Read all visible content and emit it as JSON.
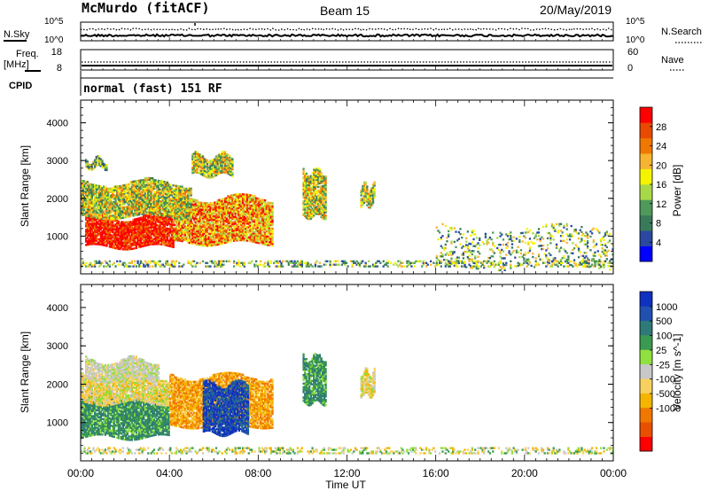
{
  "header": {
    "station": "McMurdo (fitACF)",
    "beam": "Beam 15",
    "date": "20/May/2019"
  },
  "strip_panels": {
    "noise": {
      "left_label": "N.Sky",
      "right_label": "N.Search",
      "left_ticks": [
        "10^5",
        "10^0"
      ],
      "right_ticks": [
        "10^5",
        "10^0"
      ]
    },
    "freq": {
      "left_label_line1": "Freq.",
      "left_label_line2": "[MHz]",
      "right_label": "Nave",
      "left_ticks": [
        "18",
        "8"
      ],
      "right_ticks": [
        "60",
        "0"
      ]
    },
    "cpid": {
      "label": "CPID",
      "text": "normal (fast) 151 RF"
    }
  },
  "colors": {
    "power_scale": [
      "#0000ff",
      "#2a48a0",
      "#3a7a5a",
      "#4f9a5a",
      "#a8d848",
      "#f4f400",
      "#f6b430",
      "#f07800",
      "#e84a00",
      "#ff0000"
    ],
    "velocity_scale": [
      "#ff0000",
      "#e85000",
      "#f07800",
      "#f4b400",
      "#f8d060",
      "#c8c8c8",
      "#90e040",
      "#3a9a50",
      "#2e7a78",
      "#2050b0",
      "#1030c0"
    ],
    "background": "#ffffff",
    "ground_scatter": "#7f7f7f"
  },
  "chart_data": [
    {
      "type": "heatmap",
      "title": "",
      "xlabel": "Time UT",
      "ylabel": "Slant Range [km]",
      "colorbar_label": "Power [dB]",
      "x_ticks": [
        "00:00",
        "04:00",
        "08:00",
        "12:00",
        "16:00",
        "20:00",
        "00:00"
      ],
      "xlim": [
        0,
        24
      ],
      "ylim": [
        0,
        4600
      ],
      "y_ticks": [
        1000,
        2000,
        3000,
        4000
      ],
      "colorbar_ticks": [
        4,
        8,
        12,
        16,
        20,
        24,
        28
      ],
      "colorbar_range": [
        0,
        32
      ],
      "features": [
        {
          "t_start": 0.2,
          "t_end": 4.2,
          "r_low": 700,
          "r_high": 1500,
          "level": "high"
        },
        {
          "t_start": 4.2,
          "t_end": 8.6,
          "r_low": 800,
          "r_high": 2000,
          "level": "medium-high"
        },
        {
          "t_start": 0.0,
          "t_end": 5.0,
          "r_low": 1500,
          "r_high": 2400,
          "level": "medium"
        },
        {
          "t_start": 0.2,
          "t_end": 1.2,
          "r_low": 2800,
          "r_high": 3000,
          "level": "low"
        },
        {
          "t_start": 5.0,
          "t_end": 6.8,
          "r_low": 2600,
          "r_high": 3100,
          "level": "medium"
        },
        {
          "t_start": 10.0,
          "t_end": 11.0,
          "r_low": 1500,
          "r_high": 2700,
          "level": "medium"
        },
        {
          "t_start": 12.6,
          "t_end": 13.2,
          "r_low": 1800,
          "r_high": 2300,
          "level": "medium"
        },
        {
          "t_start": 16.0,
          "t_end": 24.0,
          "r_low": 150,
          "r_high": 1200,
          "level": "low"
        }
      ]
    },
    {
      "type": "heatmap",
      "title": "",
      "xlabel": "Time UT",
      "ylabel": "Slant Range [km]",
      "colorbar_label": "Velocity [m s^-1]",
      "x_ticks": [
        "00:00",
        "04:00",
        "08:00",
        "12:00",
        "16:00",
        "20:00",
        "00:00"
      ],
      "xlim": [
        0,
        24
      ],
      "ylim": [
        0,
        4600
      ],
      "y_ticks": [
        1000,
        2000,
        3000,
        4000
      ],
      "colorbar_ticks": [
        "1000",
        "500",
        "100",
        "25",
        "-25",
        "-100",
        "-500",
        "-1000"
      ],
      "features": [
        {
          "t_start": 0.0,
          "t_end": 4.0,
          "r_low": 600,
          "r_high": 1700,
          "level": "100 to 500"
        },
        {
          "t_start": 0.0,
          "t_end": 4.0,
          "r_low": 1500,
          "r_high": 2200,
          "level": "-100 to -25"
        },
        {
          "t_start": 0.2,
          "t_end": 3.5,
          "r_low": 2100,
          "r_high": 2600,
          "level": "-25 to 25"
        },
        {
          "t_start": 4.0,
          "t_end": 8.6,
          "r_low": 900,
          "r_high": 2200,
          "level": "-500 to -100"
        },
        {
          "t_start": 5.5,
          "t_end": 7.5,
          "r_low": 700,
          "r_high": 2000,
          "level": "500 to 1000"
        },
        {
          "t_start": 10.0,
          "t_end": 11.0,
          "r_low": 1500,
          "r_high": 2700,
          "level": "100 to 500"
        },
        {
          "t_start": 12.6,
          "t_end": 13.2,
          "r_low": 1700,
          "r_high": 2300,
          "level": "-100 to -25"
        }
      ]
    }
  ]
}
